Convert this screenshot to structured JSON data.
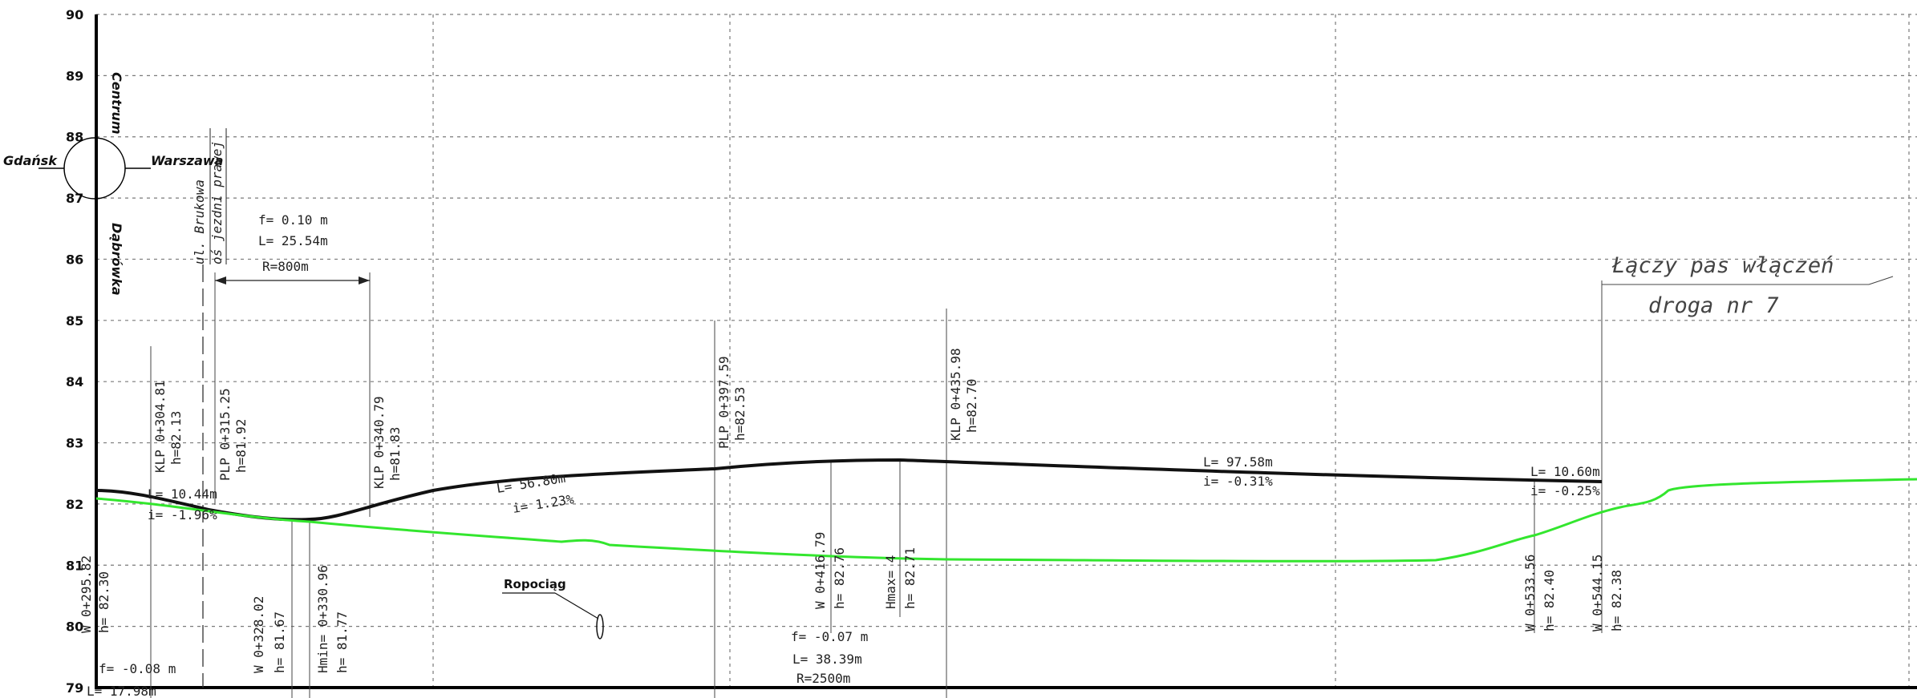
{
  "colors": {
    "design_line": "#111111",
    "ground_line": "#33e62e",
    "grid": "#7a7a7a",
    "text": "#222222"
  },
  "y_axis": {
    "ticks": [
      90,
      89,
      88,
      87,
      86,
      85,
      84,
      83,
      82,
      81,
      80,
      79
    ],
    "range": [
      79,
      90
    ]
  },
  "junction": {
    "top": "Centrum",
    "bottom": "Dąbrówka",
    "left": "Gdańsk",
    "right": "Warszawa"
  },
  "street": {
    "name": "ul. Brukowa",
    "axis": "oś jezdni prawej"
  },
  "vertical_curves": {
    "curve1": {
      "f": "f= 0.10  m",
      "L": "L= 25.54m",
      "R": "R=800m"
    },
    "curve2": {
      "f": "f= -0.07  m",
      "L": "L= 38.39m",
      "R": "R=2500m"
    },
    "curve0": {
      "f": "f= -0.08  m",
      "L": "L= 17.98m"
    }
  },
  "stations": {
    "w1": {
      "km": "0+295.82",
      "h": "h= 82.30",
      "w": "W"
    },
    "klp1": {
      "km": "KLP  0+304.81",
      "h": "h=82.13"
    },
    "plp1": {
      "km": "PLP  0+315.25",
      "h": "h=81.92"
    },
    "w2": {
      "km": "W    0+328.02",
      "h": "h=  81.67"
    },
    "hmin": {
      "km": "Hmin=  0+330.96",
      "h": "h=  81.77"
    },
    "klp2": {
      "km": "KLP  0+340.79",
      "h": "h=81.83"
    },
    "plp2": {
      "km": "PLP  0+397.59",
      "h": "h=82.53"
    },
    "w3": {
      "km": "W    0+416.79",
      "h": "h=  82.76"
    },
    "hmax": {
      "km": "Hmax=  4",
      "h": "h=  82.71"
    },
    "klp3": {
      "km": "KLP  0+435.98",
      "h": "h=82.70"
    },
    "w4": {
      "km": "W    0+533.56",
      "h": "h=  82.40"
    },
    "w5": {
      "km": "W    0+544.15",
      "h": "h=  82.38"
    }
  },
  "grades": {
    "g1": {
      "L": "L=  10.44m",
      "i": "i=  -1.96%"
    },
    "g2": {
      "L": "L=  56.80m",
      "i": "i=  1.23%"
    },
    "g3": {
      "L": "L=  97.58m",
      "i": "i=  -0.31%"
    },
    "g4": {
      "L": "L=  10.60m",
      "i": "i=  -0.25%"
    }
  },
  "pipeline": "Ropociąg",
  "connection": {
    "line1": "Łączy  pas  włączeń",
    "line2": "droga  nr  7"
  }
}
